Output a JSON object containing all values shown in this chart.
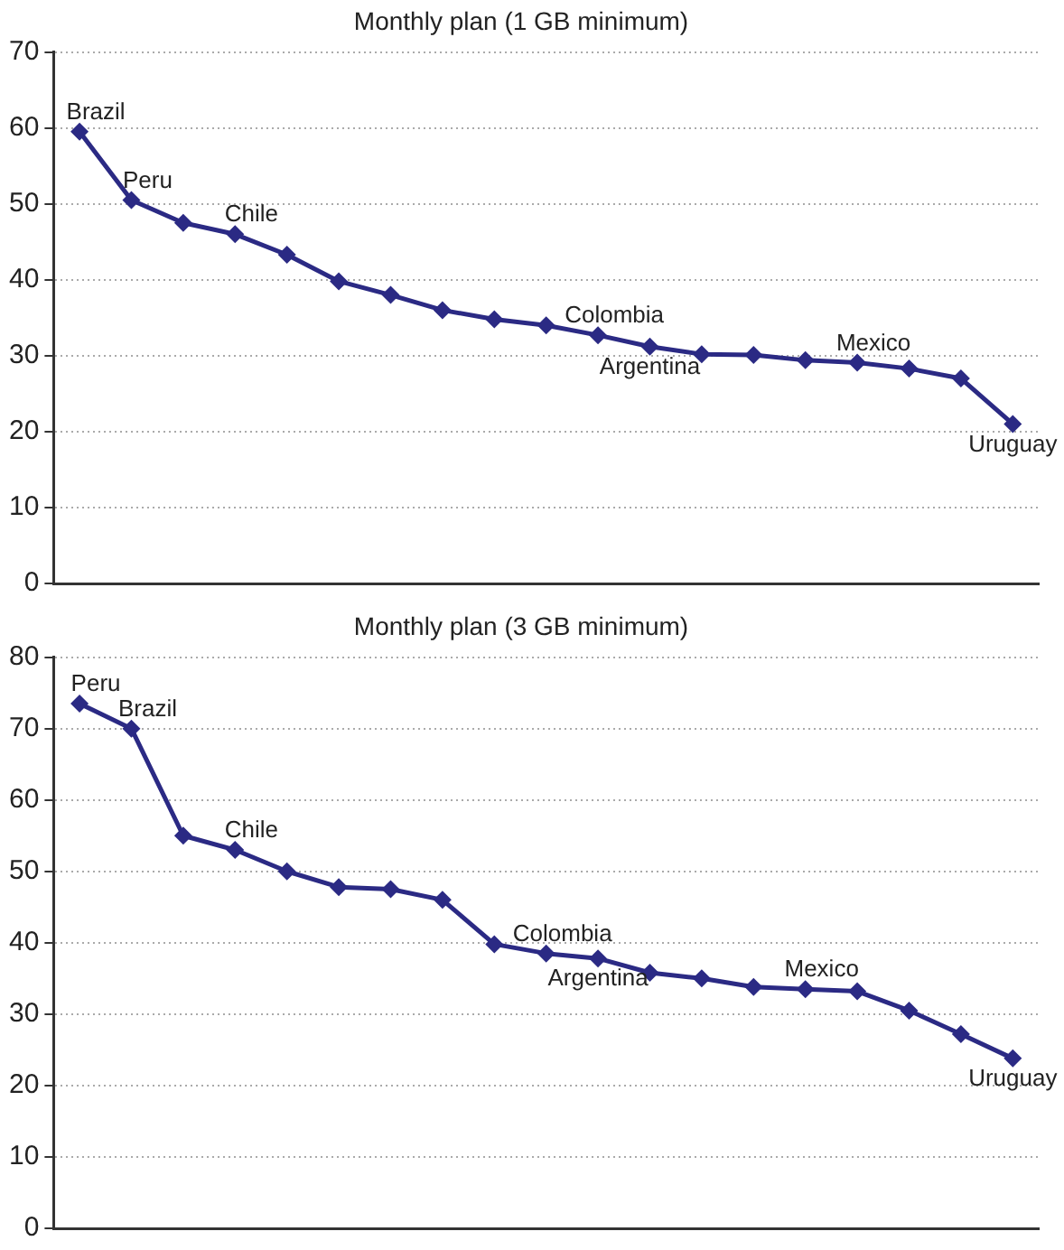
{
  "chart_data": [
    {
      "type": "line",
      "title": "Monthly plan (1 GB minimum)",
      "categories": [
        null,
        null,
        null,
        null,
        null,
        null,
        null,
        null,
        null,
        null,
        null,
        null,
        null,
        null,
        null,
        null,
        null,
        null,
        null
      ],
      "series": [
        {
          "color": "#2b2a84",
          "values": [
            59.5,
            50.5,
            47.5,
            46,
            43.3,
            39.8,
            38,
            36,
            34.8,
            34,
            32.7,
            31.2,
            30.2,
            30.1,
            29.4,
            29.1,
            28.3,
            27,
            21
          ]
        }
      ],
      "ylim": [
        0,
        70
      ],
      "yticks": [
        0,
        10,
        20,
        30,
        40,
        50,
        60,
        70
      ],
      "grid": "y",
      "tick_labels": "y",
      "marker": "diamond",
      "line_style": "solid",
      "legend": false,
      "annotations": [
        {
          "text": "Brazil",
          "y": 59.5
        },
        {
          "text": "Peru",
          "y": 50.5
        },
        {
          "text": "Chile",
          "y": 46
        },
        {
          "text": "Colombia",
          "y": 32.7
        },
        {
          "text": "Argentina",
          "y": 31.2
        },
        {
          "text": "Mexico",
          "y": 29.1
        },
        {
          "text": "Uruguay",
          "y": 21
        }
      ]
    },
    {
      "type": "line",
      "title": "Monthly plan (3 GB minimum)",
      "categories": [
        null,
        null,
        null,
        null,
        null,
        null,
        null,
        null,
        null,
        null,
        null,
        null,
        null,
        null,
        null,
        null,
        null,
        null,
        null
      ],
      "series": [
        {
          "color": "#2b2a84",
          "values": [
            73.5,
            70,
            55,
            53,
            50,
            47.8,
            47.5,
            46,
            39.8,
            38.5,
            37.8,
            35.8,
            35,
            33.8,
            33.5,
            33.2,
            30.5,
            27.2,
            23.8
          ]
        }
      ],
      "ylim": [
        0,
        80
      ],
      "yticks": [
        0,
        10,
        20,
        30,
        40,
        50,
        60,
        70,
        80
      ],
      "grid": "y",
      "tick_labels": "y",
      "marker": "diamond",
      "line_style": "solid",
      "legend": false,
      "annotations": [
        {
          "text": "Peru",
          "y": 73.5
        },
        {
          "text": "Brazil",
          "y": 70
        },
        {
          "text": "Chile",
          "y": 53
        },
        {
          "text": "Colombia",
          "y": 38.5
        },
        {
          "text": "Argentina",
          "y": 37.8
        },
        {
          "text": "Mexico",
          "y": 33.5
        },
        {
          "text": "Uruguay",
          "y": 23.8
        }
      ]
    }
  ]
}
